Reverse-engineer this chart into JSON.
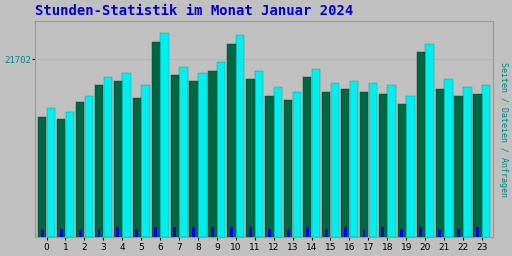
{
  "title": "Stunden-Statistik im Monat Januar 2024",
  "title_color": "#0000dd",
  "title_fontsize": 10,
  "background_color": "#c0c0c0",
  "plot_bg_color": "#c0c0c0",
  "ylabel": "Seiten / Dateien / Anfragen",
  "ylabel_color": "#008888",
  "ytick_label": "21702",
  "ytick_color": "#008888",
  "hours": [
    0,
    1,
    2,
    3,
    4,
    5,
    6,
    7,
    8,
    9,
    10,
    11,
    12,
    13,
    14,
    15,
    16,
    17,
    18,
    19,
    20,
    21,
    22,
    23
  ],
  "seiten": [
    0.62,
    0.6,
    0.68,
    0.77,
    0.79,
    0.73,
    0.98,
    0.82,
    0.79,
    0.84,
    0.97,
    0.8,
    0.72,
    0.7,
    0.81,
    0.74,
    0.75,
    0.74,
    0.73,
    0.68,
    0.93,
    0.76,
    0.72,
    0.73
  ],
  "dateien": [
    0.58,
    0.57,
    0.65,
    0.73,
    0.75,
    0.67,
    0.94,
    0.78,
    0.75,
    0.8,
    0.93,
    0.76,
    0.68,
    0.66,
    0.77,
    0.7,
    0.71,
    0.7,
    0.69,
    0.64,
    0.89,
    0.71,
    0.68,
    0.69
  ],
  "anfragen": [
    0.04,
    0.04,
    0.04,
    0.04,
    0.05,
    0.04,
    0.05,
    0.05,
    0.05,
    0.05,
    0.05,
    0.05,
    0.04,
    0.04,
    0.05,
    0.04,
    0.05,
    0.04,
    0.05,
    0.04,
    0.05,
    0.04,
    0.04,
    0.05
  ],
  "color_seiten": "#00eeee",
  "color_dateien": "#006644",
  "color_anfragen": "#0000ee",
  "ylim": [
    0,
    1.04
  ],
  "ytick_val": 0.855,
  "grid_color": "#b0b0b0",
  "grid_linewidth": 0.5,
  "bar_gap": 0.02
}
